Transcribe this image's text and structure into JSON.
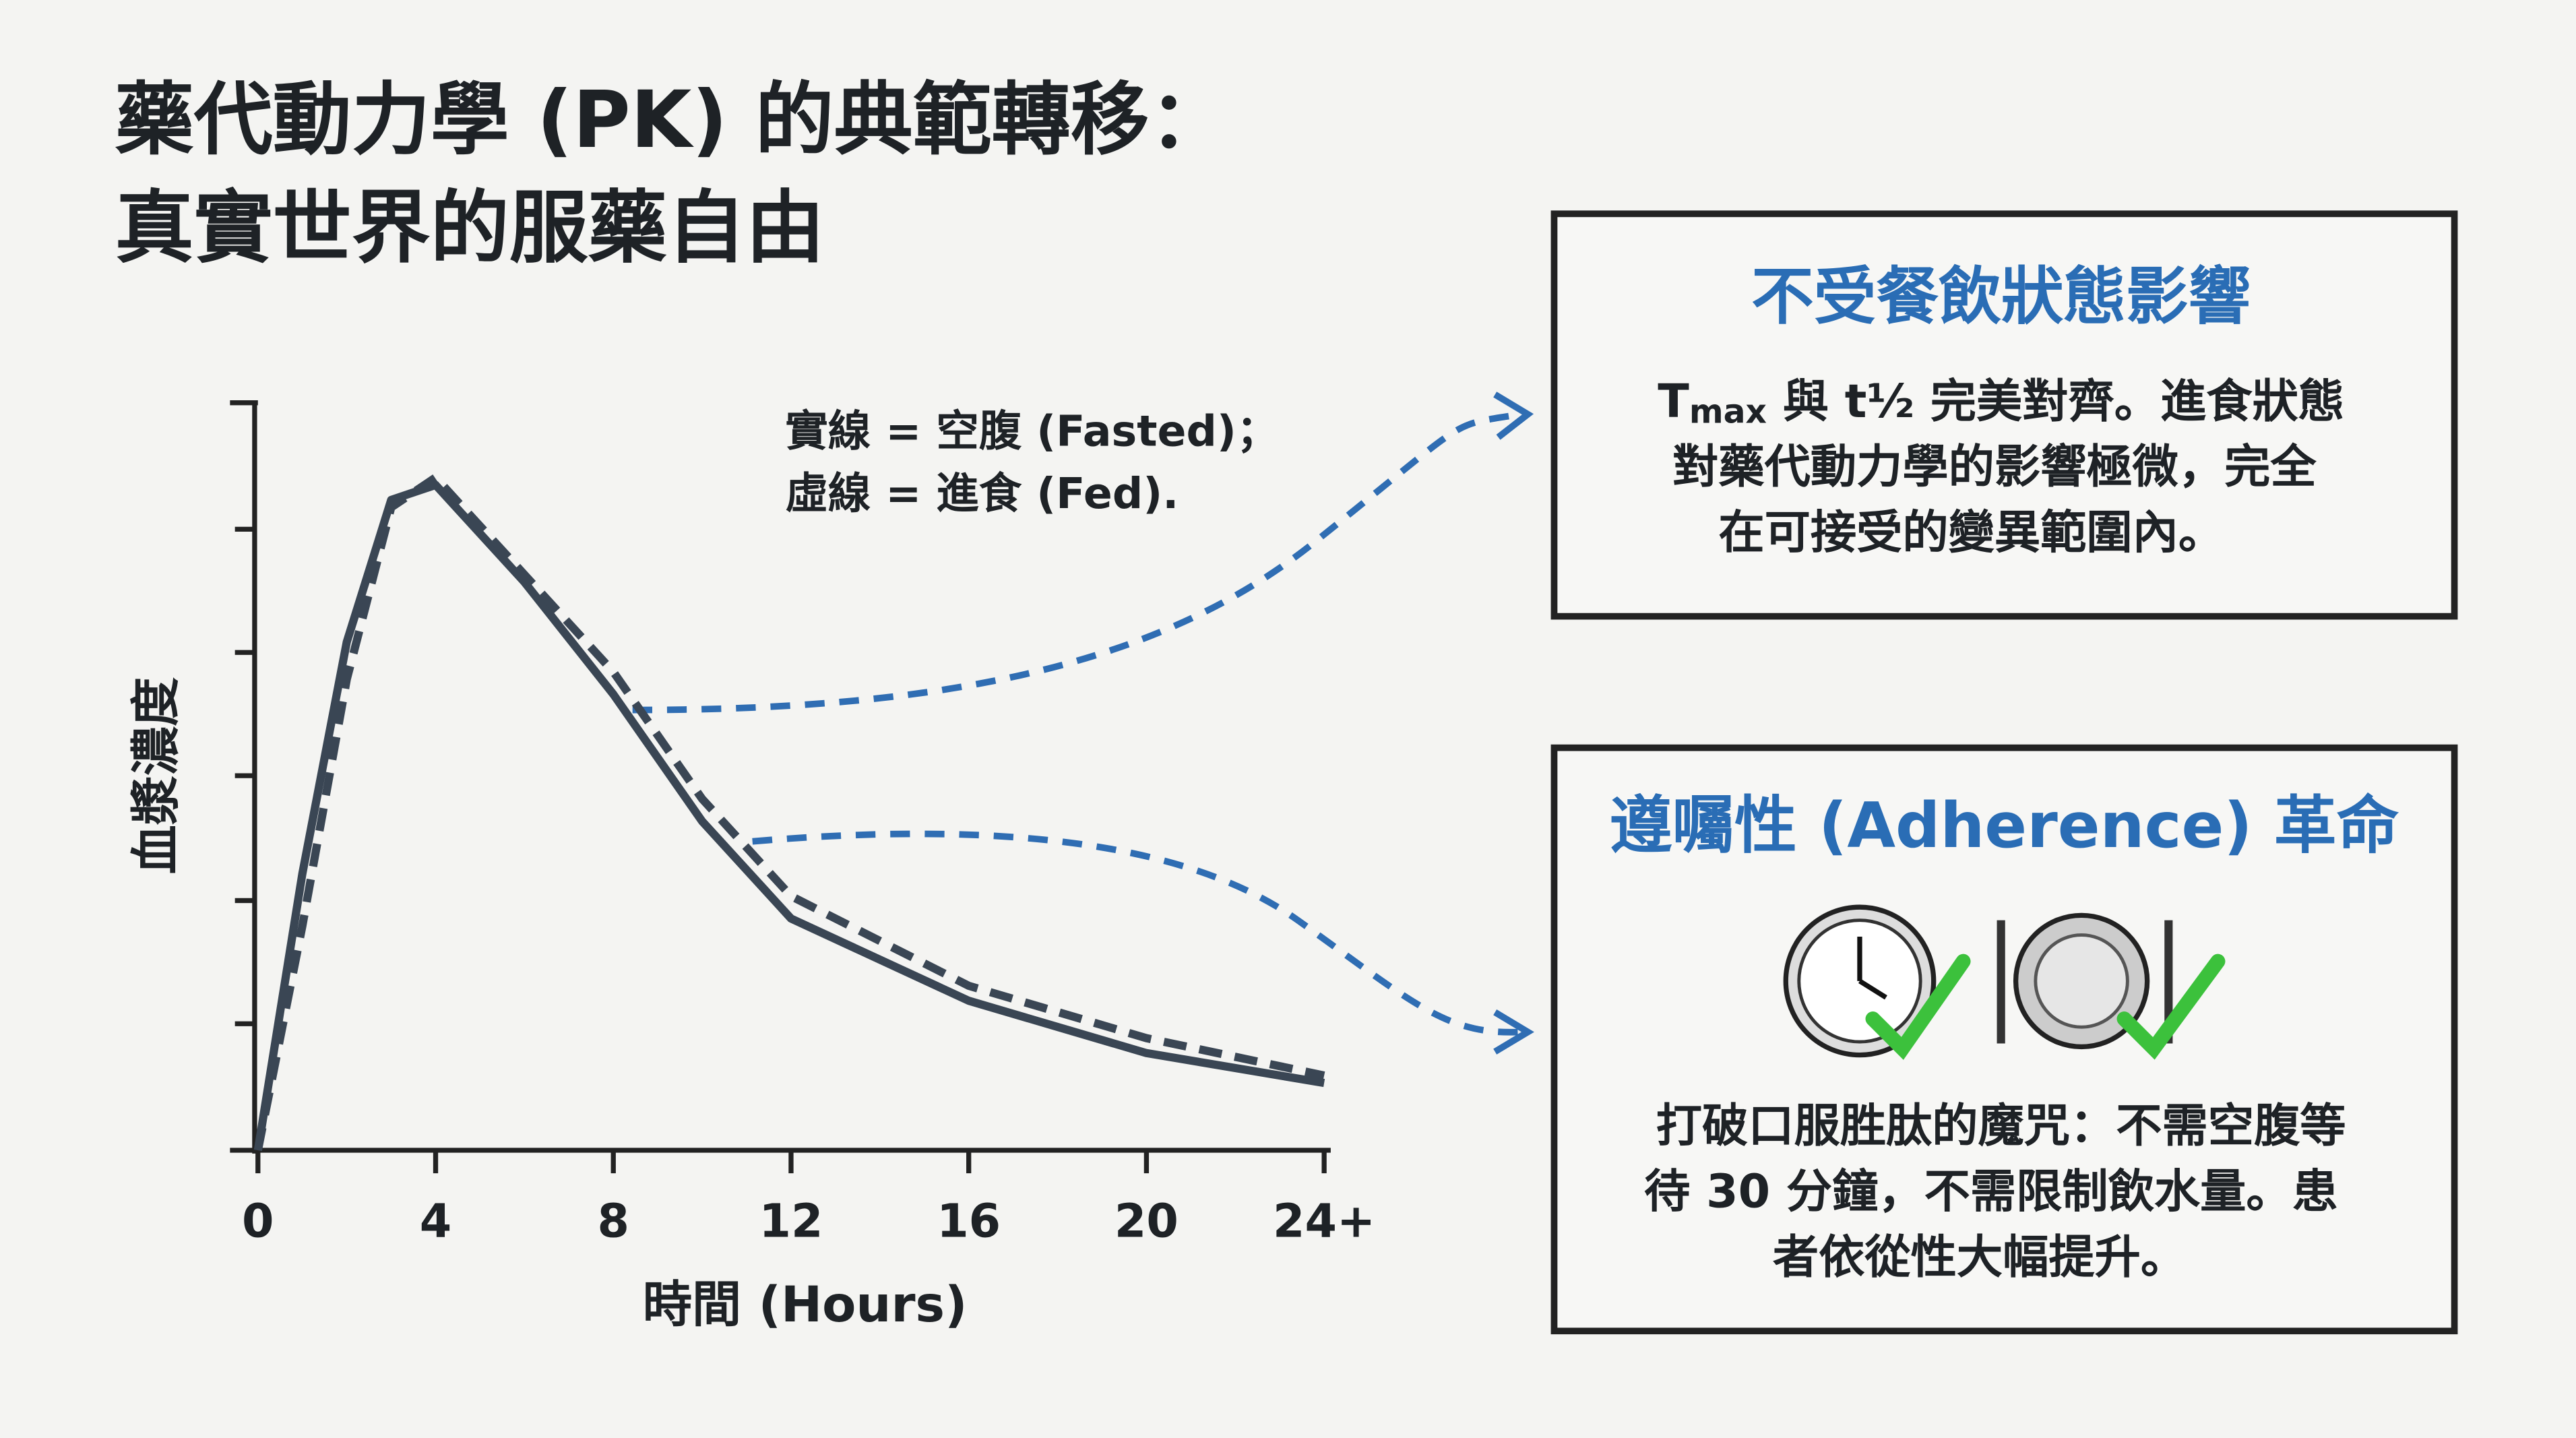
{
  "chart_data": {
    "type": "line",
    "title_lines": [
      "藥代動力學 (PK) 的典範轉移：",
      "真實世界的服藥自由"
    ],
    "x_label": "時間 (Hours)",
    "y_label": "血漿濃度",
    "annotations": [
      "實線 = 空腹 (Fasted)；",
      "虛線 = 進食 (Fed)."
    ],
    "x": [
      0,
      1,
      2,
      3,
      4,
      6,
      8,
      10,
      12,
      16,
      20,
      24
    ],
    "series": [
      {
        "color": "#3a4654",
        "style": "solid",
        "values": [
          0,
          37,
          68,
          87,
          89,
          76,
          61,
          44,
          31,
          20,
          13,
          9
        ]
      },
      {
        "color": "#3a4654",
        "style": "dashed",
        "values": [
          0,
          30,
          63,
          86,
          90,
          77,
          64,
          47,
          34,
          22,
          15,
          10
        ]
      }
    ],
    "xlim": [
      0,
      24
    ],
    "ylim": [
      0,
      100
    ],
    "xticks": [
      0,
      4,
      8,
      12,
      16,
      20,
      {
        "value": 24,
        "label": "24+"
      }
    ]
  },
  "boxes": [
    {
      "title": "不受餐飲狀態影響",
      "symbol": {
        "main": "T",
        "sub": "max"
      },
      "lines": [
        " 與 t½ 完美對齊。進食狀態",
        "對藥代動力學的影響極微，完全",
        "在可接受的變異範圍內。"
      ]
    },
    {
      "title": "遵囑性 (Adherence) 革命",
      "lines": [
        "打破口服胜肽的魔咒：不需空腹等",
        "待 30 分鐘，不需限制飲水量。患",
        "者依從性大幅提升。"
      ]
    }
  ]
}
